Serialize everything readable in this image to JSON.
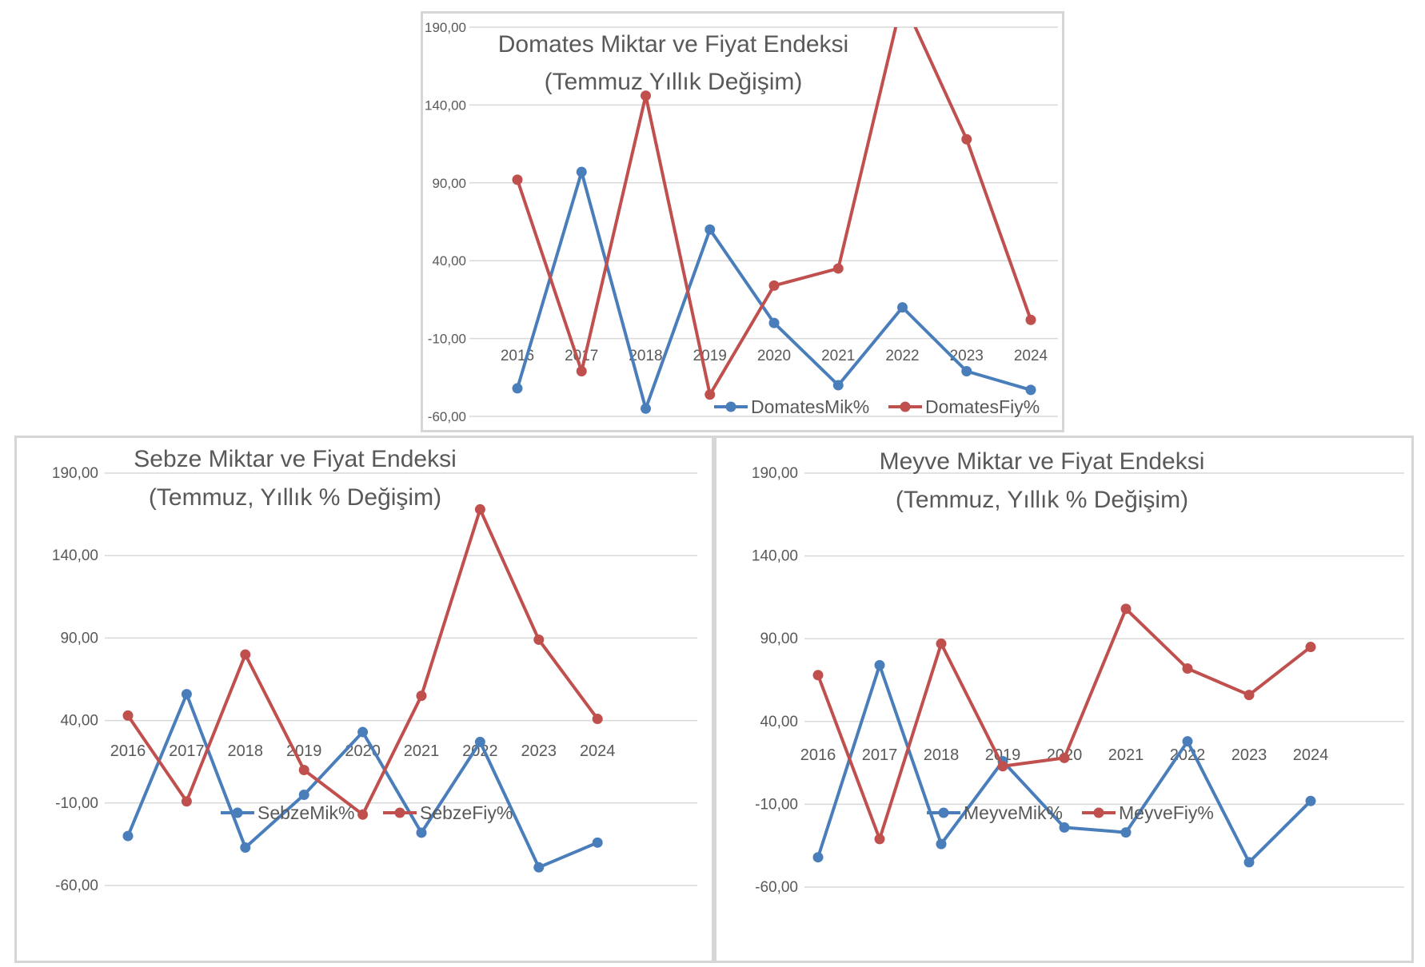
{
  "chart_data": [
    {
      "type": "line",
      "title": "Domates Miktar ve Fiyat Endeksi",
      "subtitle": "(Temmuz  Yıllık Değişim)",
      "categories": [
        "2016",
        "2017",
        "2018",
        "2019",
        "2020",
        "2021",
        "2022",
        "2023",
        "2024"
      ],
      "y_tick_labels": [
        "190,00",
        "140,00",
        "90,00",
        "40,00",
        "-10,00",
        "-60,00"
      ],
      "ylim": [
        -60,
        190
      ],
      "grid": true,
      "legend_position": "bottom-right",
      "series": [
        {
          "name": "DomatesMik%",
          "color": "#4a7ebb",
          "values": [
            -42,
            97,
            -55,
            60,
            0,
            -40,
            10,
            -31,
            -43
          ]
        },
        {
          "name": "DomatesFiy%",
          "color": "#c0504d",
          "values": [
            92,
            -31,
            146,
            -46,
            24,
            35,
            208,
            118,
            2
          ]
        }
      ]
    },
    {
      "type": "line",
      "title": "Sebze Miktar ve Fiyat Endeksi",
      "subtitle": "(Temmuz, Yıllık % Değişim)",
      "categories": [
        "2016",
        "2017",
        "2018",
        "2019",
        "2020",
        "2021",
        "2022",
        "2023",
        "2024"
      ],
      "y_tick_labels": [
        "190,00",
        "140,00",
        "90,00",
        "40,00",
        "-10,00",
        "-60,00"
      ],
      "ylim": [
        -60,
        190
      ],
      "grid": true,
      "legend_position": "bottom-center",
      "series": [
        {
          "name": "SebzeMik%",
          "color": "#4a7ebb",
          "values": [
            -30,
            56,
            -37,
            -5,
            33,
            -28,
            27,
            -49,
            -34
          ]
        },
        {
          "name": "SebzeFiy%",
          "color": "#c0504d",
          "values": [
            43,
            -9,
            80,
            10,
            -17,
            55,
            168,
            89,
            41
          ]
        }
      ]
    },
    {
      "type": "line",
      "title": "Meyve Miktar ve Fiyat Endeksi",
      "subtitle": "(Temmuz, Yıllık % Değişim)",
      "categories": [
        "2016",
        "2017",
        "2018",
        "2019",
        "2020",
        "2021",
        "2022",
        "2023",
        "2024"
      ],
      "y_tick_labels": [
        "190,00",
        "140,00",
        "90,00",
        "40,00",
        "-10,00",
        "-60,00"
      ],
      "ylim": [
        -60,
        190
      ],
      "grid": true,
      "legend_position": "bottom-center",
      "series": [
        {
          "name": "MeyveMik%",
          "color": "#4a7ebb",
          "values": [
            -42,
            74,
            -34,
            16,
            -24,
            -27,
            28,
            -45,
            -8
          ]
        },
        {
          "name": "MeyveFiy%",
          "color": "#c0504d",
          "values": [
            68,
            -31,
            87,
            13,
            18,
            108,
            72,
            56,
            85
          ]
        }
      ]
    }
  ]
}
